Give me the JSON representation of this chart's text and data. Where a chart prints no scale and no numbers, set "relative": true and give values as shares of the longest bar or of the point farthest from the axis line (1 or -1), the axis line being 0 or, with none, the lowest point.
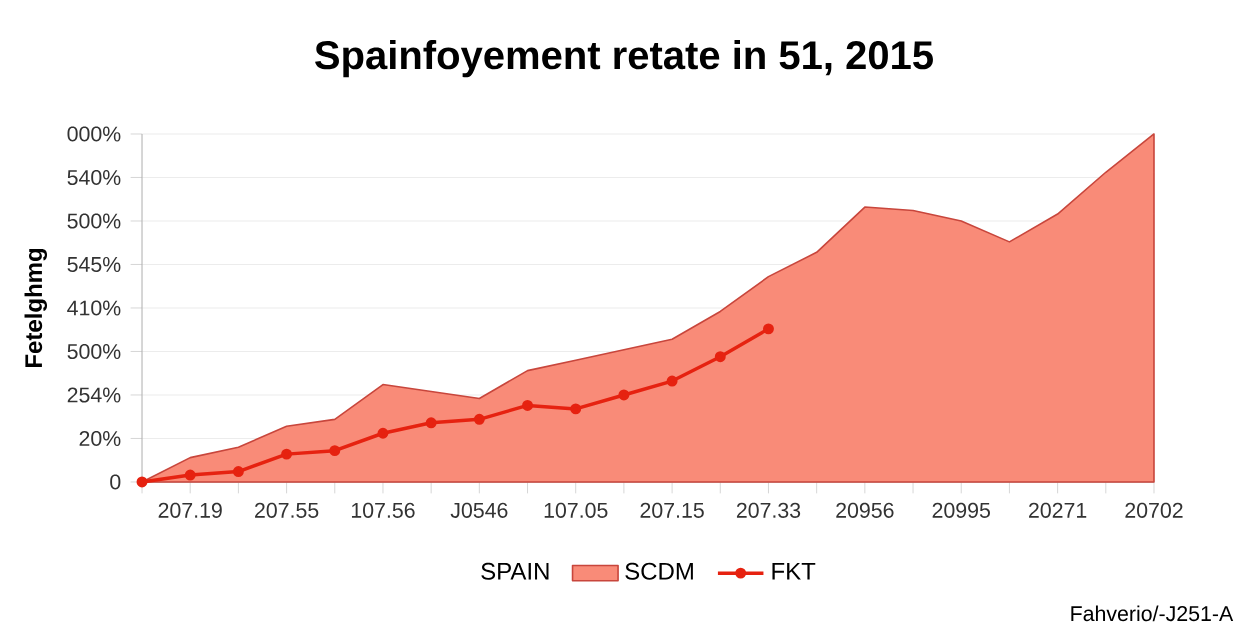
{
  "chart_data": {
    "type": "area",
    "title": "Spainfoyement retate in 51, 2015",
    "ylabel": "Fetelghmg",
    "legend_title": "SPAIN",
    "legend": "bottom",
    "grid": "y",
    "relative": true,
    "annotations": [
      "0",
      "20%",
      "254%",
      "500%",
      "410%",
      "545%",
      "500%",
      "540%",
      "000%",
      "Fahverio/-J251-A"
    ],
    "categories": [
      null,
      "207.19",
      null,
      "207.55",
      null,
      "107.56",
      null,
      "J0546",
      null,
      "107.05",
      null,
      "207.15",
      null,
      "207.33",
      null,
      "20956",
      null,
      "20995",
      null,
      "20271",
      null,
      "20702"
    ],
    "series": [
      {
        "name": "SCDM",
        "color": "#f98b78",
        "marker": "none",
        "values": [
          0,
          0.07,
          0.1,
          0.16,
          0.18,
          0.28,
          0.26,
          0.24,
          0.32,
          0.35,
          0.38,
          0.41,
          0.49,
          0.59,
          0.66,
          0.79,
          0.78,
          0.75,
          0.69,
          0.77,
          0.89,
          1
        ]
      },
      {
        "name": "FKT",
        "type": "line",
        "color": "#e62210",
        "marker": "circle",
        "values": [
          0,
          0.02,
          0.03,
          0.08,
          0.09,
          0.14,
          0.17,
          0.18,
          0.22,
          0.21,
          0.25,
          0.29,
          0.36,
          0.44,
          null,
          null,
          null,
          null,
          null,
          null,
          null,
          null
        ]
      }
    ]
  }
}
